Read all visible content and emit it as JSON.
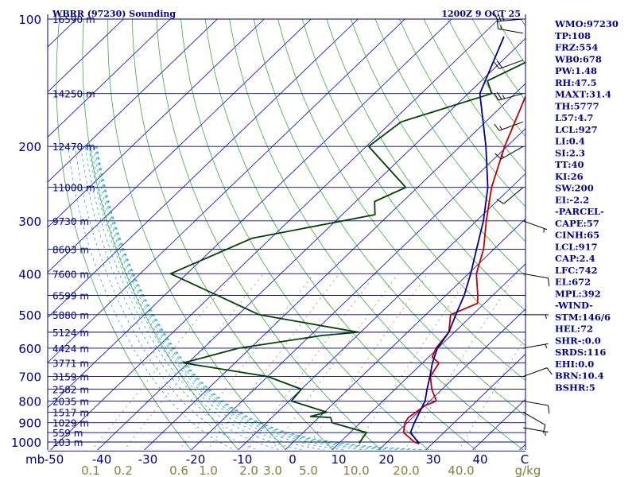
{
  "header": {
    "station": "WBRR (97230) Sounding",
    "time": "1200Z  9 OCT 25"
  },
  "chart_data": {
    "type": "skew-t",
    "pressure_axis": {
      "label": "mb",
      "ticks": [
        100,
        200,
        300,
        400,
        500,
        600,
        700,
        800,
        900,
        1000
      ],
      "scale": "log",
      "range": [
        100,
        1050
      ]
    },
    "temperature_axis": {
      "unit": "C",
      "ticks": [
        -50,
        -40,
        -30,
        -20,
        -10,
        0,
        10,
        20,
        30,
        40
      ]
    },
    "mixing_ratio_axis": {
      "unit": "g/kg",
      "ticks": [
        "0.1",
        "0.2",
        "0.6",
        "1.0",
        "2.0",
        "3.0",
        "5.0",
        "10.0",
        "20.0",
        "40.0"
      ]
    },
    "height_labels": [
      {
        "p": 100,
        "label": "16590 m"
      },
      {
        "p": 150,
        "label": "14250 m"
      },
      {
        "p": 200,
        "label": "12470 m"
      },
      {
        "p": 250,
        "label": "11000 m"
      },
      {
        "p": 300,
        "label": "9730 m"
      },
      {
        "p": 350,
        "label": "8603 m"
      },
      {
        "p": 400,
        "label": "7600 m"
      },
      {
        "p": 450,
        "label": "6599 m"
      },
      {
        "p": 500,
        "label": "5880 m"
      },
      {
        "p": 550,
        "label": "5124 m"
      },
      {
        "p": 600,
        "label": "4424 m"
      },
      {
        "p": 650,
        "label": "3771 m"
      },
      {
        "p": 700,
        "label": "3159 m"
      },
      {
        "p": 750,
        "label": "2582 m"
      },
      {
        "p": 800,
        "label": "2035 m"
      },
      {
        "p": 850,
        "label": "1517 m"
      },
      {
        "p": 900,
        "label": "1029 m"
      },
      {
        "p": 950,
        "label": "559 m"
      },
      {
        "p": 1000,
        "label": "103 m"
      }
    ],
    "series": [
      {
        "color": "#c00000",
        "points": [
          [
            100,
            -24.5
          ],
          [
            106,
            -31
          ],
          [
            150,
            -27.5
          ],
          [
            200,
            -20.5
          ],
          [
            250,
            -14.2
          ],
          [
            300,
            -7.9
          ],
          [
            350,
            -2.2
          ],
          [
            400,
            1.7
          ],
          [
            450,
            6.8
          ],
          [
            470,
            8.5
          ],
          [
            500,
            5.3
          ],
          [
            550,
            8.8
          ],
          [
            600,
            9.6
          ],
          [
            630,
            10.8
          ],
          [
            650,
            13.5
          ],
          [
            700,
            14.7
          ],
          [
            750,
            17.8
          ],
          [
            800,
            21.4
          ],
          [
            820,
            20
          ],
          [
            850,
            19.5
          ],
          [
            875,
            19.1
          ],
          [
            900,
            19.5
          ],
          [
            950,
            21.4
          ],
          [
            1000,
            25.8
          ],
          [
            1009,
            27.2
          ]
        ]
      },
      {
        "color": "#00008b",
        "points": [
          [
            110,
            -45
          ],
          [
            150,
            -37.5
          ],
          [
            200,
            -24.5
          ],
          [
            250,
            -15
          ],
          [
            300,
            -8.5
          ],
          [
            350,
            -3.7
          ],
          [
            400,
            0.5
          ],
          [
            450,
            3.9
          ],
          [
            500,
            6.4
          ],
          [
            550,
            8.8
          ],
          [
            600,
            9.9
          ],
          [
            650,
            12.1
          ],
          [
            700,
            14.6
          ],
          [
            750,
            16.8
          ],
          [
            800,
            19
          ],
          [
            850,
            20.3
          ],
          [
            900,
            21.5
          ],
          [
            950,
            22.9
          ],
          [
            1009,
            27.2
          ]
        ]
      },
      {
        "color": "#004000",
        "points": [
          [
            100,
            -20.3
          ],
          [
            120,
            -32.5
          ],
          [
            140,
            -38.7
          ],
          [
            150,
            -35
          ],
          [
            175,
            -48
          ],
          [
            200,
            -49.5
          ],
          [
            250,
            -32.5
          ],
          [
            270,
            -36
          ],
          [
            290,
            -33
          ],
          [
            330,
            -54
          ],
          [
            400,
            -63.5
          ],
          [
            500,
            -35.5
          ],
          [
            550,
            -10.5
          ],
          [
            560,
            -17.5
          ],
          [
            600,
            -32.5
          ],
          [
            650,
            -41
          ],
          [
            700,
            -20
          ],
          [
            750,
            -10
          ],
          [
            800,
            -9.5
          ],
          [
            850,
            0.5
          ],
          [
            870,
            -2
          ],
          [
            875,
            2.5
          ],
          [
            900,
            4
          ],
          [
            950,
            13.5
          ],
          [
            1000,
            14.2
          ],
          [
            1009,
            14.5
          ]
        ]
      }
    ],
    "winds": [
      {
        "p": 100,
        "dir": 265,
        "spd": 25
      },
      {
        "p": 108,
        "dir": 280,
        "spd": 15
      },
      {
        "p": 125,
        "dir": 250,
        "spd": 20
      },
      {
        "p": 150,
        "dir": 255,
        "spd": 25
      },
      {
        "p": 175,
        "dir": 250,
        "spd": 15
      },
      {
        "p": 200,
        "dir": 240,
        "spd": 15
      },
      {
        "p": 250,
        "dir": 230,
        "spd": 10
      },
      {
        "p": 300,
        "dir": 110,
        "spd": 5
      },
      {
        "p": 400,
        "dir": 100,
        "spd": 10
      },
      {
        "p": 500,
        "dir": 90,
        "spd": 5
      },
      {
        "p": 600,
        "dir": 80,
        "spd": 5
      },
      {
        "p": 700,
        "dir": 70,
        "spd": 10
      },
      {
        "p": 800,
        "dir": 100,
        "spd": 10
      },
      {
        "p": 850,
        "dir": 120,
        "spd": 10
      },
      {
        "p": 925,
        "dir": 100,
        "spd": 5
      }
    ]
  },
  "indices": [
    "WMO:97230",
    "TP:108",
    "FRZ:554",
    "WB0:678",
    "PW:1.48",
    "RH:47.5",
    "MAXT:31.4",
    "TH:5777",
    "L57:4.7",
    "LCL:927",
    "LI:0.4",
    "SI:2.3",
    "TT:40",
    "KI:26",
    "SW:200",
    "EI:-2.2",
    "-PARCEL-",
    "CAPE:57",
    "CINH:65",
    "LCL:917",
    "CAP:2.4",
    "LFC:742",
    "EL:672",
    "MPL:392",
    "-WIND-",
    "STM:146/6",
    "HEL:72",
    "SHR-:0.0",
    "SRDS:116",
    "EHI:0.0",
    "BRN:10.4",
    "BSHR:5"
  ],
  "colors": {
    "isobar": "#00008b",
    "isotherm": "#0000cd",
    "dry_adiabat": "#20a020",
    "moist_adiabat": "#00a0a0",
    "mixing_ratio": "#8b7d3a",
    "temperature": "#c00000",
    "dewpoint": "#004000",
    "parcel": "#00008b",
    "text": "#00008b"
  }
}
